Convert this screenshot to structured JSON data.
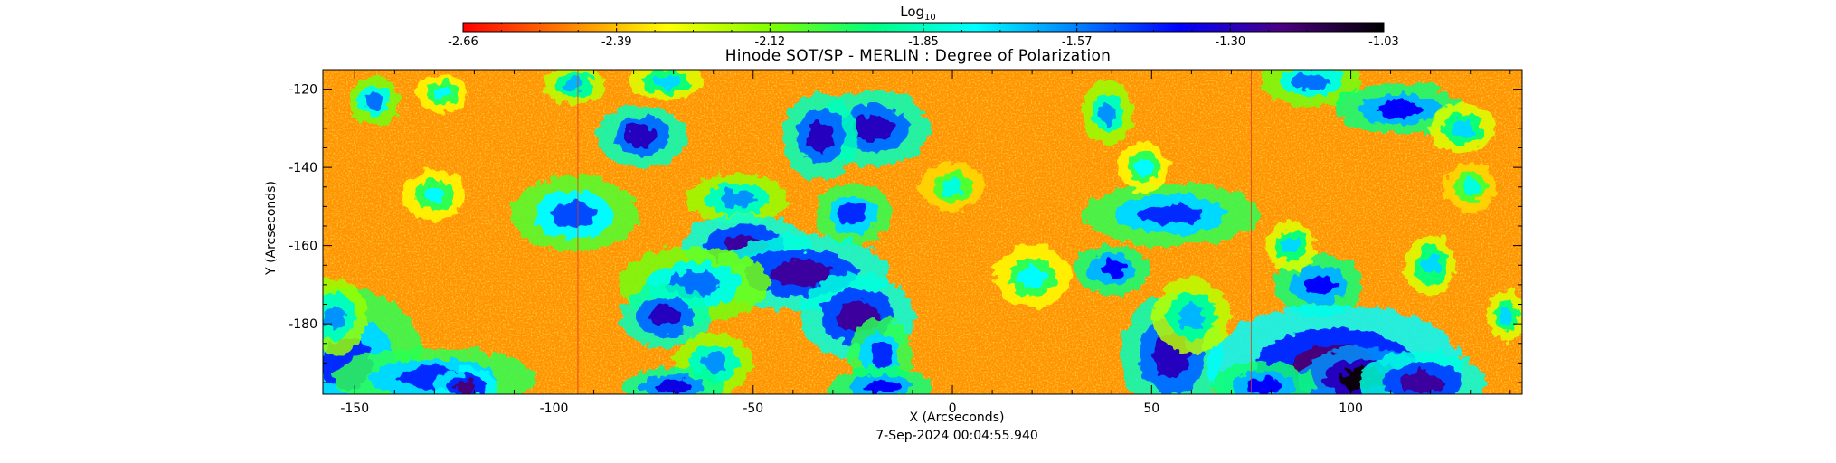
{
  "chart_data": {
    "type": "heatmap",
    "title": "Hinode SOT/SP - MERLIN : Degree of Polarization",
    "xlabel": "X (Arcseconds)",
    "ylabel": "Y (Arcseconds)",
    "timestamp": "7-Sep-2024 00:04:55.940",
    "xlim": [
      -158,
      143
    ],
    "ylim": [
      -198,
      -115
    ],
    "x_ticks": [
      -150,
      -100,
      -50,
      0,
      50,
      100
    ],
    "y_ticks": [
      -120,
      -140,
      -160,
      -180
    ],
    "colorbar": {
      "title": "Log",
      "title_subscript": "10",
      "min": -2.66,
      "max": -1.03,
      "tick_labels": [
        "-2.66",
        "-2.39",
        "-2.12",
        "-1.85",
        "-1.57",
        "-1.30",
        "-1.03"
      ],
      "colormap": [
        "#ff0000",
        "#ff7f00",
        "#ffff00",
        "#7fff00",
        "#00ff7f",
        "#00ffff",
        "#007fff",
        "#0000ff",
        "#4b0082",
        "#000000"
      ]
    },
    "background_level": -2.45,
    "scan_seams_x": [
      -94,
      75
    ],
    "polarized_patches": [
      {
        "x": -145,
        "y": -123,
        "w": 4,
        "h": 4,
        "v": -1.55
      },
      {
        "x": -128,
        "y": -121,
        "w": 4,
        "h": 3,
        "v": -1.75
      },
      {
        "x": -95,
        "y": -119,
        "w": 5,
        "h": 3,
        "v": -1.65
      },
      {
        "x": -72,
        "y": -118,
        "w": 6,
        "h": 3,
        "v": -1.7
      },
      {
        "x": -78,
        "y": -132,
        "w": 7,
        "h": 5,
        "v": -1.3
      },
      {
        "x": -20,
        "y": -130,
        "w": 9,
        "h": 6,
        "v": -1.3
      },
      {
        "x": -33,
        "y": -132,
        "w": 6,
        "h": 7,
        "v": -1.3
      },
      {
        "x": -54,
        "y": -148,
        "w": 8,
        "h": 4,
        "v": -1.6
      },
      {
        "x": -95,
        "y": -152,
        "w": 10,
        "h": 6,
        "v": -1.5
      },
      {
        "x": -130,
        "y": -147,
        "w": 5,
        "h": 4,
        "v": -1.75
      },
      {
        "x": -25,
        "y": -152,
        "w": 6,
        "h": 5,
        "v": -1.45
      },
      {
        "x": -52,
        "y": -160,
        "w": 10,
        "h": 5,
        "v": -1.25
      },
      {
        "x": -38,
        "y": -167,
        "w": 14,
        "h": 6,
        "v": -1.25
      },
      {
        "x": -65,
        "y": -170,
        "w": 12,
        "h": 6,
        "v": -1.55
      },
      {
        "x": -72,
        "y": -178,
        "w": 7,
        "h": 5,
        "v": -1.3
      },
      {
        "x": -24,
        "y": -178,
        "w": 9,
        "h": 7,
        "v": -1.25
      },
      {
        "x": -18,
        "y": -188,
        "w": 5,
        "h": 6,
        "v": -1.45
      },
      {
        "x": -60,
        "y": -190,
        "w": 6,
        "h": 5,
        "v": -1.6
      },
      {
        "x": -152,
        "y": -190,
        "w": 12,
        "h": 12,
        "v": -1.45
      },
      {
        "x": -155,
        "y": -178,
        "w": 5,
        "h": 6,
        "v": -1.6
      },
      {
        "x": -130,
        "y": -194,
        "w": 16,
        "h": 5,
        "v": -1.45
      },
      {
        "x": -122,
        "y": -196,
        "w": 5,
        "h": 3,
        "v": -1.2
      },
      {
        "x": -70,
        "y": -196,
        "w": 8,
        "h": 3,
        "v": -1.35
      },
      {
        "x": -18,
        "y": -196,
        "w": 8,
        "h": 3,
        "v": -1.4
      },
      {
        "x": 20,
        "y": -168,
        "w": 6,
        "h": 5,
        "v": -1.75
      },
      {
        "x": 40,
        "y": -166,
        "w": 6,
        "h": 4,
        "v": -1.4
      },
      {
        "x": 55,
        "y": -152,
        "w": 14,
        "h": 5,
        "v": -1.45
      },
      {
        "x": 39,
        "y": -126,
        "w": 4,
        "h": 5,
        "v": -1.6
      },
      {
        "x": 48,
        "y": -140,
        "w": 4,
        "h": 4,
        "v": -1.75
      },
      {
        "x": 55,
        "y": -188,
        "w": 8,
        "h": 10,
        "v": -1.3
      },
      {
        "x": 60,
        "y": -178,
        "w": 6,
        "h": 6,
        "v": -1.65
      },
      {
        "x": 90,
        "y": -118,
        "w": 8,
        "h": 4,
        "v": -1.55
      },
      {
        "x": 112,
        "y": -125,
        "w": 10,
        "h": 4,
        "v": -1.4
      },
      {
        "x": 128,
        "y": -130,
        "w": 5,
        "h": 4,
        "v": -1.7
      },
      {
        "x": 92,
        "y": -170,
        "w": 7,
        "h": 5,
        "v": -1.4
      },
      {
        "x": 85,
        "y": -160,
        "w": 4,
        "h": 4,
        "v": -1.7
      },
      {
        "x": 96,
        "y": -191,
        "w": 20,
        "h": 10,
        "v": -1.2
      },
      {
        "x": 103,
        "y": -194,
        "w": 10,
        "h": 5,
        "v": -1.05
      },
      {
        "x": 118,
        "y": -195,
        "w": 10,
        "h": 5,
        "v": -1.25
      },
      {
        "x": 78,
        "y": -196,
        "w": 8,
        "h": 4,
        "v": -1.4
      },
      {
        "x": 120,
        "y": -165,
        "w": 4,
        "h": 5,
        "v": -1.7
      },
      {
        "x": 139,
        "y": -178,
        "w": 3,
        "h": 4,
        "v": -1.7
      },
      {
        "x": 0,
        "y": -145,
        "w": 5,
        "h": 4,
        "v": -1.8
      },
      {
        "x": 130,
        "y": -145,
        "w": 4,
        "h": 4,
        "v": -1.8
      }
    ]
  }
}
